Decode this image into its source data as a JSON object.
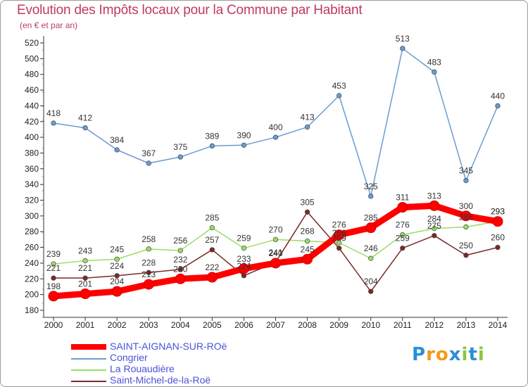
{
  "chart_data": {
    "type": "line",
    "title": "Evolution des Impôts locaux pour la Commune par Habitant",
    "subtitle": "(en € et par an)",
    "x": [
      "2000",
      "2001",
      "2002",
      "2003",
      "2004",
      "2005",
      "2006",
      "2007",
      "2008",
      "2009",
      "2010",
      "2011",
      "2012",
      "2013",
      "2014"
    ],
    "ylim": [
      180,
      520
    ],
    "yticks": [
      "180",
      "200",
      "220",
      "240",
      "260",
      "280",
      "300",
      "320",
      "340",
      "360",
      "380",
      "400",
      "420",
      "440",
      "460",
      "480",
      "500",
      "520"
    ],
    "grid": false,
    "legend_position": "bottom-left",
    "series": [
      {
        "name": "SAINT-AIGNAN-SUR-ROë",
        "color": "#ff0000",
        "values": [
          198,
          201,
          204,
          213,
          220,
          222,
          233,
          240,
          245,
          276,
          285,
          311,
          313,
          300,
          293
        ],
        "labels": [
          "198",
          "201",
          "204",
          "213",
          "220",
          "222",
          "233",
          "240",
          "245",
          "276",
          "285",
          "311",
          "313",
          "300",
          "293"
        ]
      },
      {
        "name": "Congrier",
        "color": "#6b9dce",
        "values": [
          418,
          412,
          384,
          367,
          375,
          389,
          390,
          400,
          413,
          453,
          325,
          513,
          483,
          345,
          440
        ],
        "labels": [
          "418",
          "412",
          "384",
          "367",
          "375",
          "389",
          "390",
          "400",
          "413",
          "453",
          "325",
          "513",
          "483",
          "345",
          "440"
        ]
      },
      {
        "name": "La Rouaudière",
        "color": "#99dd66",
        "values": [
          239,
          243,
          245,
          258,
          256,
          285,
          259,
          270,
          268,
          266,
          246,
          276,
          284,
          286,
          293
        ],
        "labels": [
          "239",
          "243",
          "245",
          "258",
          "256",
          "285",
          "259",
          "270",
          "268",
          "266",
          "246",
          "276",
          "284",
          "286",
          "293"
        ]
      },
      {
        "name": "Saint-Michel-de-la-Roë",
        "color": "#7a2a2a",
        "values": [
          221,
          221,
          224,
          228,
          232,
          257,
          224,
          241,
          305,
          259,
          204,
          259,
          275,
          250,
          260
        ],
        "labels": [
          "221",
          "221",
          "224",
          "228",
          "232",
          "257",
          "224",
          "241",
          "305",
          "259",
          "204",
          "259",
          "275",
          "250",
          "260"
        ]
      }
    ]
  },
  "logo": {
    "letters": [
      {
        "ch": "P",
        "color": "#2b8fd6"
      },
      {
        "ch": "r",
        "color": "#f29b1a"
      },
      {
        "ch": "o",
        "color": "#f29b1a"
      },
      {
        "ch": "x",
        "color": "#2b8fd6"
      },
      {
        "ch": "i",
        "color": "#8cc63e"
      },
      {
        "ch": "t",
        "color": "#2b8fd6"
      },
      {
        "ch": "i",
        "color": "#8cc63e"
      }
    ]
  }
}
